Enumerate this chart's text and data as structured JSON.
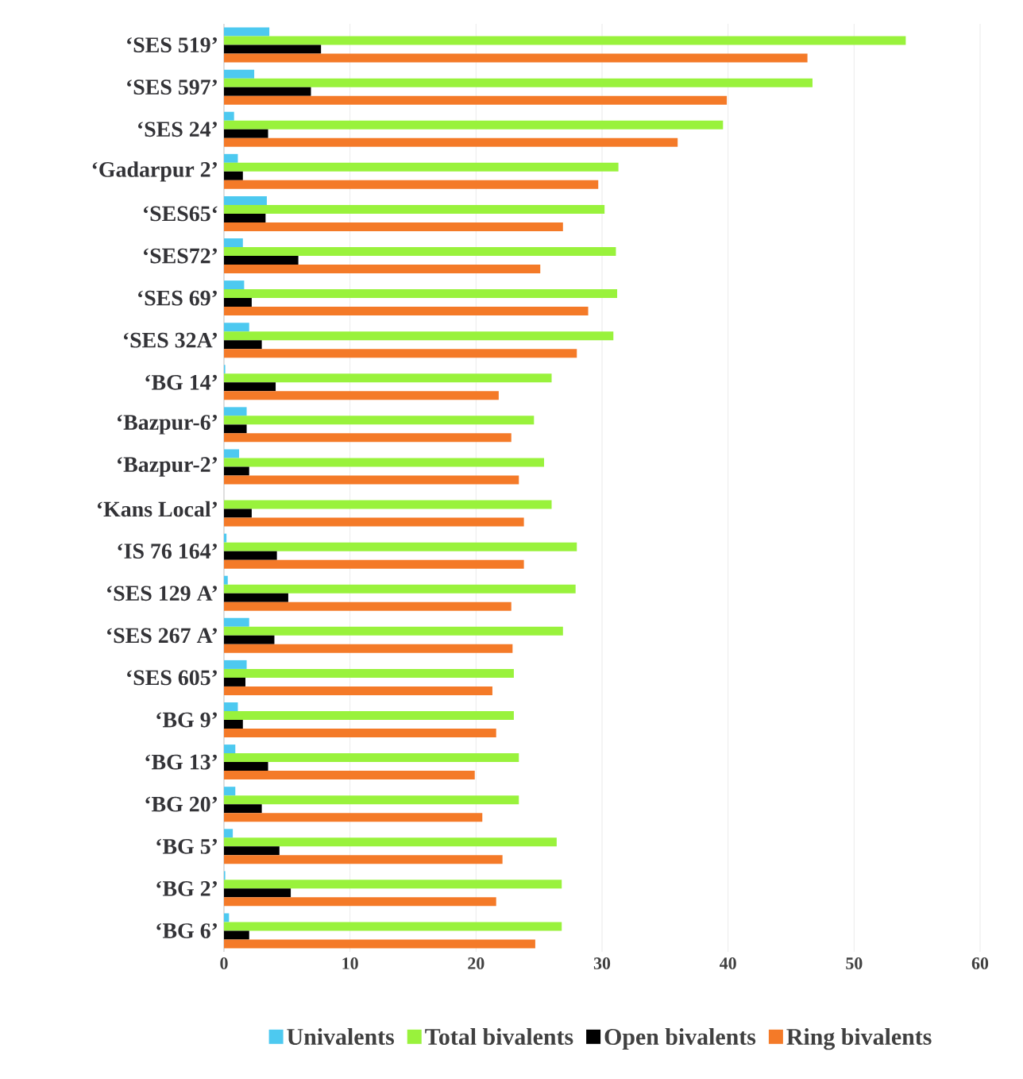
{
  "chart_data": {
    "type": "bar",
    "orientation": "horizontal",
    "categories": [
      "‘SES 519’",
      "‘SES 597’",
      "‘SES 24’",
      "‘Gadarpur  2’",
      "‘SES65‘",
      "‘SES72’",
      "‘SES 69’",
      "‘SES 32A’",
      "‘BG 14’",
      "‘Bazpur-6’",
      "‘Bazpur-2’",
      "‘Kans Local’",
      "‘IS 76 164’",
      "‘SES 129 A’",
      "‘SES 267 A’",
      "‘SES 605’",
      "‘BG 9’",
      "‘BG 13’",
      "‘BG 20’",
      "‘BG 5’",
      "‘BG 2’",
      "‘BG 6’"
    ],
    "series": [
      {
        "name": "Univalents",
        "color": "#4dc9f0",
        "values": [
          3.6,
          2.4,
          0.8,
          1.1,
          3.4,
          1.5,
          1.6,
          2.0,
          0.1,
          1.8,
          1.2,
          0,
          0.2,
          0.3,
          2.0,
          1.8,
          1.1,
          0.9,
          0.9,
          0.7,
          0.1,
          0.4
        ]
      },
      {
        "name": "Total bivalents",
        "color": "#99f23c",
        "values": [
          54.1,
          46.7,
          39.6,
          31.3,
          30.2,
          31.1,
          31.2,
          30.9,
          26.0,
          24.6,
          25.4,
          26.0,
          28.0,
          27.9,
          26.9,
          23.0,
          23.0,
          23.4,
          23.4,
          26.4,
          26.8,
          26.8
        ]
      },
      {
        "name": "Open bivalents",
        "color": "#000000",
        "values": [
          7.7,
          6.9,
          3.5,
          1.5,
          3.3,
          5.9,
          2.2,
          3.0,
          4.1,
          1.8,
          2.0,
          2.2,
          4.2,
          5.1,
          4.0,
          1.7,
          1.5,
          3.5,
          3.0,
          4.4,
          5.3,
          2.0
        ]
      },
      {
        "name": "Ring bivalents",
        "color": "#f47a28",
        "values": [
          46.3,
          39.9,
          36.0,
          29.7,
          26.9,
          25.1,
          28.9,
          28.0,
          21.8,
          22.8,
          23.4,
          23.8,
          23.8,
          22.8,
          22.9,
          21.3,
          21.6,
          19.9,
          20.5,
          22.1,
          21.6,
          24.7
        ]
      }
    ],
    "xlim": [
      0,
      60
    ],
    "xticks": [
      0,
      10,
      20,
      30,
      40,
      50,
      60
    ],
    "grid": "x",
    "legend": "bottom"
  }
}
